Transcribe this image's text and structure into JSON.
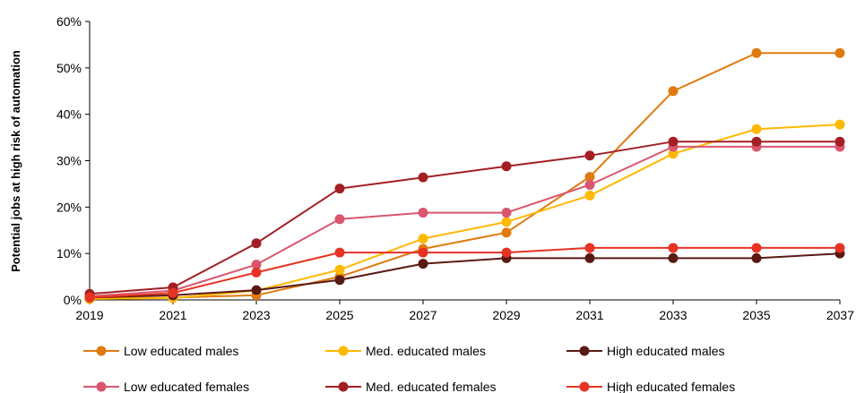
{
  "chart_data": {
    "type": "line",
    "title": "",
    "xlabel": "",
    "ylabel": "Potential jobs at high risk of automation",
    "x": [
      "2019",
      "2021",
      "2023",
      "2025",
      "2027",
      "2029",
      "2031",
      "2033",
      "2035",
      "2037"
    ],
    "ylim": [
      0,
      60
    ],
    "yticks": [
      "0%",
      "10%",
      "20%",
      "30%",
      "40%",
      "50%",
      "60%"
    ],
    "grid": false,
    "legend_position": "bottom",
    "series": [
      {
        "name": "Low educated males",
        "color": "#E07A10",
        "values": [
          0.3,
          0.5,
          1.0,
          5.0,
          11.0,
          14.5,
          26.5,
          45.0,
          53.2,
          53.2
        ]
      },
      {
        "name": "Med. educated males",
        "color": "#FFB800",
        "values": [
          0.2,
          0.4,
          2.0,
          6.5,
          13.2,
          16.8,
          22.5,
          31.5,
          36.8,
          37.8
        ]
      },
      {
        "name": "High educated males",
        "color": "#5A1A14",
        "values": [
          0.5,
          1.0,
          2.1,
          4.3,
          7.8,
          9.0,
          9.0,
          9.0,
          9.0,
          10.0
        ]
      },
      {
        "name": "Low educated females",
        "color": "#D9566E",
        "values": [
          0.8,
          2.0,
          7.6,
          17.4,
          18.8,
          18.8,
          24.8,
          33.0,
          33.0,
          33.0
        ]
      },
      {
        "name": "Med. educated females",
        "color": "#A31F24",
        "values": [
          1.3,
          2.7,
          12.2,
          24.0,
          26.4,
          28.8,
          31.1,
          34.1,
          34.1,
          34.1
        ]
      },
      {
        "name": "High educated females",
        "color": "#E63323",
        "values": [
          0.5,
          1.5,
          5.9,
          10.2,
          10.2,
          10.2,
          11.2,
          11.2,
          11.2,
          11.2
        ]
      }
    ]
  }
}
